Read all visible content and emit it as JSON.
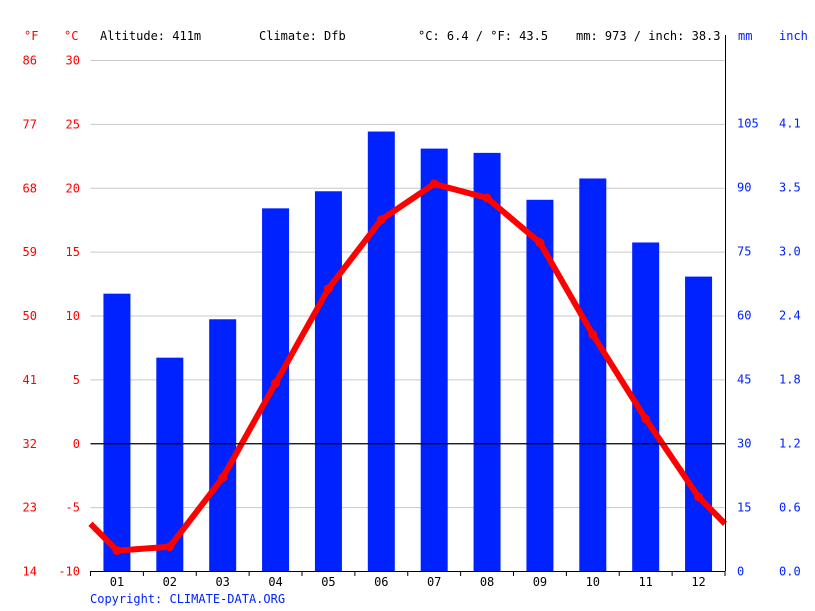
{
  "header": {
    "f_unit": "°F",
    "c_unit": "°C",
    "altitude": "Altitude: 411m",
    "climate": "Climate: Dfb",
    "avg_temp": "°C: 6.4 / °F: 43.5",
    "precip_total": "mm: 973 / inch: 38.3",
    "mm_unit": "mm",
    "inch_unit": "inch"
  },
  "copyright": "Copyright: CLIMATE-DATA.ORG",
  "colors": {
    "temperature": "#ff0000",
    "precipitation": "#0022ff",
    "grid": "#c8c8c8"
  },
  "chart_data": {
    "type": "bar+line",
    "categories": [
      "01",
      "02",
      "03",
      "04",
      "05",
      "06",
      "07",
      "08",
      "09",
      "10",
      "11",
      "12"
    ],
    "series": [
      {
        "axis": "mm",
        "type": "bar",
        "values": [
          65,
          50,
          59,
          85,
          89,
          103,
          99,
          98,
          87,
          92,
          77,
          69
        ]
      },
      {
        "axis": "°C",
        "type": "line",
        "values": [
          -8.4,
          -8.1,
          -2.7,
          4.7,
          12.1,
          17.5,
          20.3,
          19.2,
          15.7,
          8.5,
          1.9,
          -4.2
        ]
      }
    ],
    "left_axis_c": {
      "ylim": [
        -10,
        30
      ],
      "ticks": [
        "-10",
        "-5",
        "0",
        "5",
        "10",
        "15",
        "20",
        "25",
        "30"
      ]
    },
    "left_axis_f": {
      "ticks": [
        "14",
        "23",
        "32",
        "41",
        "50",
        "59",
        "68",
        "77",
        "86"
      ]
    },
    "right_axis_mm": {
      "ylim": [
        0,
        120
      ],
      "ticks": [
        "0",
        "15",
        "30",
        "45",
        "60",
        "75",
        "90",
        "105"
      ]
    },
    "right_axis_inch": {
      "ticks": [
        "0.0",
        "0.6",
        "1.2",
        "1.8",
        "2.4",
        "3.0",
        "3.5",
        "4.1"
      ]
    },
    "grid": true
  }
}
